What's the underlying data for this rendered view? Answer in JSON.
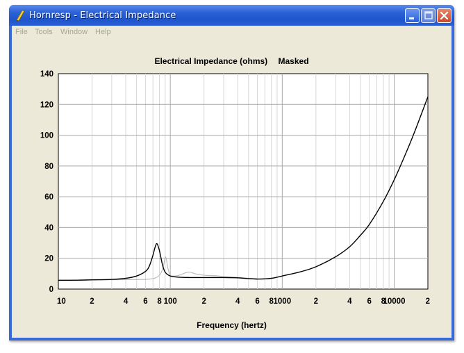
{
  "window": {
    "title": "Hornresp - Electrical Impedance"
  },
  "menu": {
    "items": [
      "File",
      "Tools",
      "Window",
      "Help"
    ]
  },
  "chart_data": {
    "type": "line",
    "title": "Electrical Impedance (ohms)",
    "subtitle": "Masked",
    "xlabel": "Frequency (hertz)",
    "xscale": "log",
    "xlim": [
      10,
      20000
    ],
    "ylim": [
      0,
      140
    ],
    "grid": true,
    "yticks": [
      "0",
      "20",
      "40",
      "60",
      "80",
      "100",
      "120",
      "140"
    ],
    "xticks": [
      "10",
      "2",
      "4",
      "6",
      "8",
      "100",
      "2",
      "4",
      "6",
      "8",
      "1000",
      "2",
      "4",
      "6",
      "8",
      "10000",
      "2"
    ],
    "series": [
      {
        "color": "#000000",
        "x": [
          10,
          15,
          20,
          30,
          40,
          50,
          60,
          65,
          70,
          73,
          76,
          80,
          85,
          90,
          100,
          120,
          150,
          200,
          300,
          400,
          500,
          600,
          800,
          1000,
          1500,
          2000,
          3000,
          4000,
          5000,
          6000,
          8000,
          10000,
          12000,
          15000,
          20000
        ],
        "y": [
          5.7,
          5.8,
          6.0,
          6.3,
          7.0,
          8.5,
          11.5,
          15,
          22,
          27,
          29.5,
          25,
          16,
          11,
          8.5,
          7.7,
          7.5,
          7.5,
          7.5,
          7.3,
          6.8,
          6.5,
          7.0,
          8.5,
          11.5,
          14.5,
          21,
          27.5,
          35,
          42,
          57,
          71,
          84,
          101,
          125
        ]
      },
      {
        "color": "#b8b8b8",
        "x": [
          10,
          30,
          50,
          60,
          70,
          75,
          80,
          85,
          88,
          90,
          92,
          95,
          100,
          110,
          120,
          140,
          150,
          170,
          200,
          250,
          300,
          400,
          500,
          600
        ],
        "y": [
          5.7,
          6.0,
          6.2,
          6.3,
          6.8,
          7.5,
          9.0,
          12.5,
          17,
          20.5,
          20,
          14,
          9,
          8.5,
          9,
          10.8,
          11,
          9.8,
          9.0,
          8.7,
          8.2,
          7.6,
          7.1,
          6.8
        ]
      }
    ]
  }
}
